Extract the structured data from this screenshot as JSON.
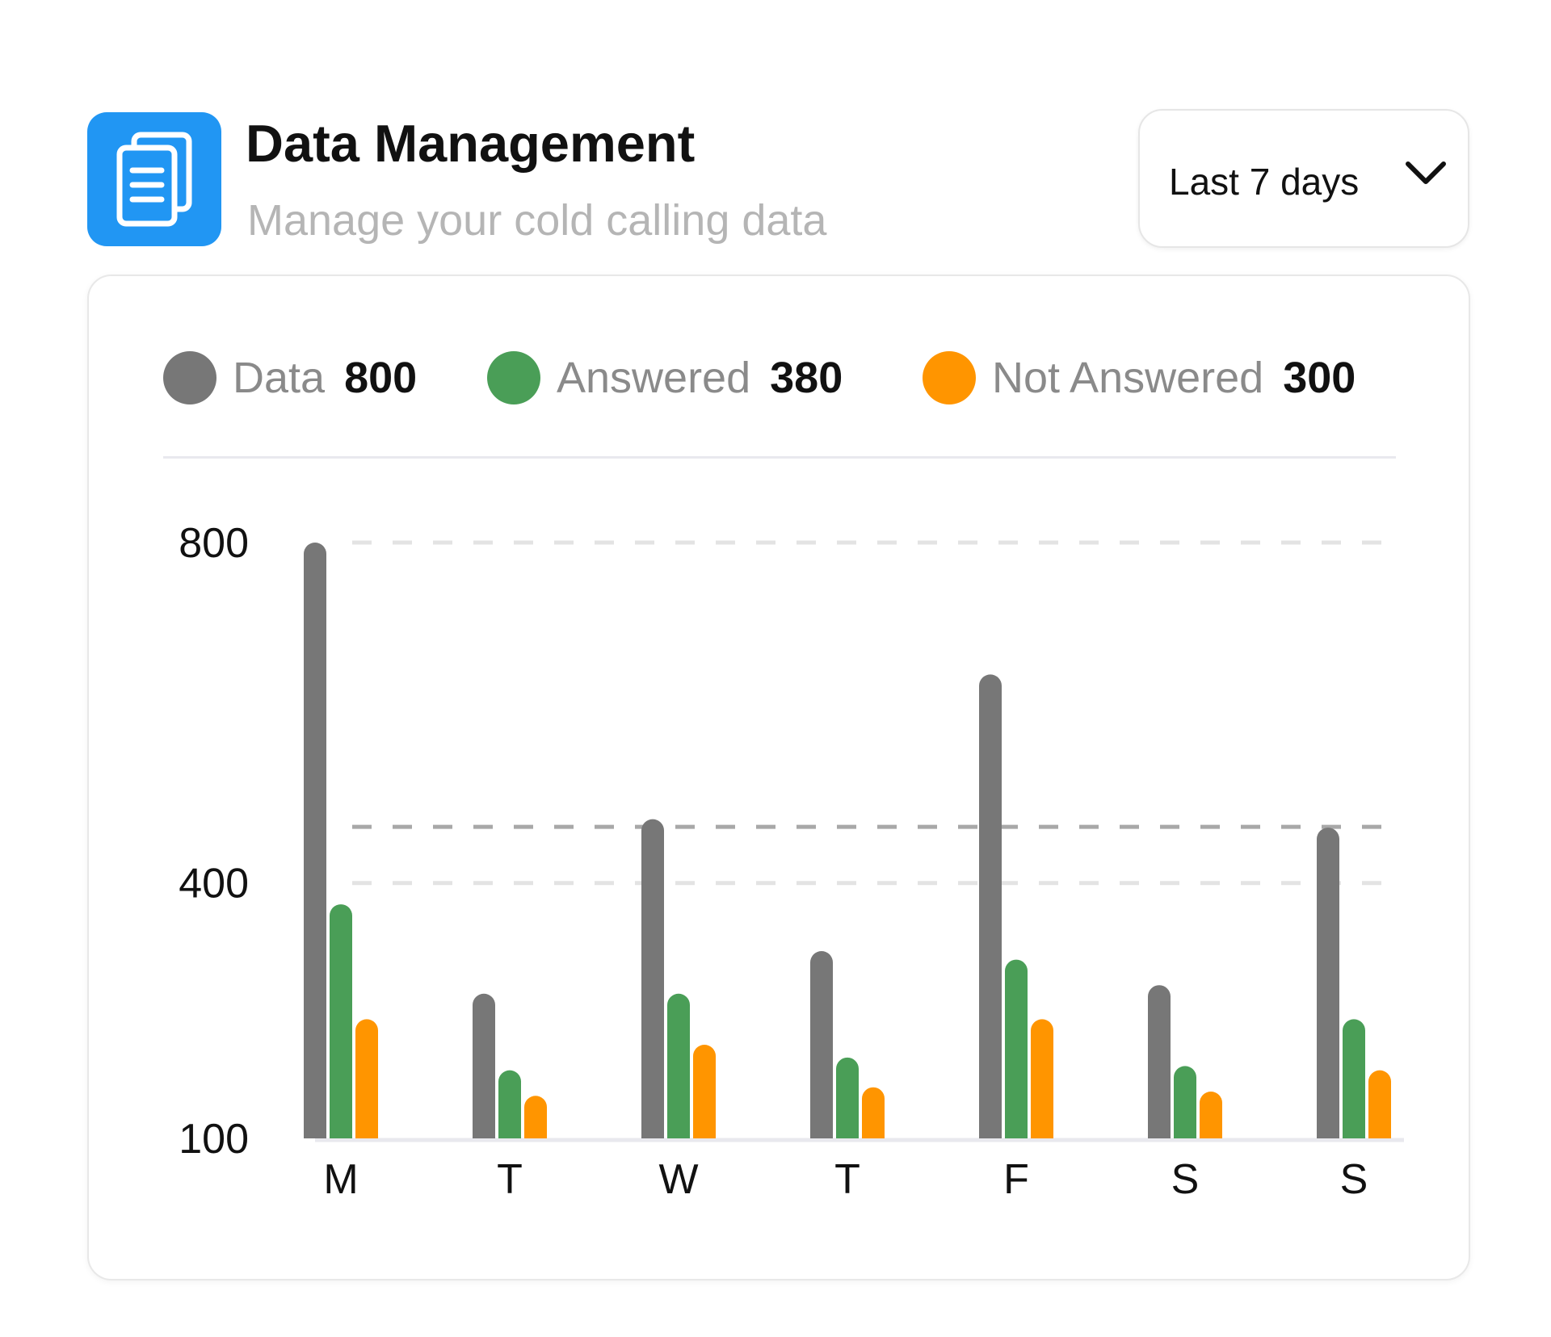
{
  "header": {
    "title": "Data Management",
    "subtitle": "Manage your cold calling data",
    "icon": "documents-icon",
    "icon_color": "#2196f3"
  },
  "range_select": {
    "label": "Last 7 days",
    "icon": "chevron-down-icon"
  },
  "legend": [
    {
      "label": "Data",
      "value": "800",
      "color": "#777777"
    },
    {
      "label": "Answered",
      "value": "380",
      "color": "#4a9e57"
    },
    {
      "label": "Not Answered",
      "value": "300",
      "color": "#ff9500"
    }
  ],
  "chart_data": {
    "type": "bar",
    "categories": [
      "M",
      "T",
      "W",
      "T",
      "F",
      "S",
      "S"
    ],
    "series": [
      {
        "name": "Data",
        "color": "#777777",
        "values": [
          800,
          270,
          475,
          320,
          645,
          280,
          465
        ]
      },
      {
        "name": "Answered",
        "color": "#4a9e57",
        "values": [
          375,
          180,
          270,
          195,
          310,
          185,
          240
        ]
      },
      {
        "name": "Not Answered",
        "color": "#ff9500",
        "values": [
          240,
          150,
          210,
          160,
          240,
          155,
          180
        ]
      }
    ],
    "y_ticks": [
      "800",
      "400",
      "100"
    ],
    "reference_line": 466,
    "ylim": [
      100,
      800
    ],
    "grid": true,
    "legend_position": "top"
  }
}
